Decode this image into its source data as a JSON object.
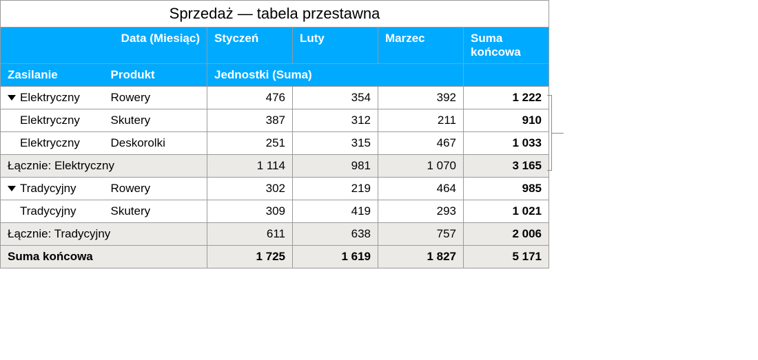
{
  "title": "Sprzedaż — tabela przestawna",
  "headers": {
    "date_label": "Data (Miesiąc)",
    "months": [
      "Styczeń",
      "Luty",
      "Marzec"
    ],
    "grand": "Suma końcowa",
    "row_field_1": "Zasilanie",
    "row_field_2": "Produkt",
    "values_label": "Jednostki (Suma)"
  },
  "groups": [
    {
      "name": "Elektryczny",
      "rows": [
        {
          "product": "Rowery",
          "vals": [
            "476",
            "354",
            "392"
          ],
          "total": "1 222"
        },
        {
          "product": "Skutery",
          "vals": [
            "387",
            "312",
            "211"
          ],
          "total": "910"
        },
        {
          "product": "Deskorolki",
          "vals": [
            "251",
            "315",
            "467"
          ],
          "total": "1 033"
        }
      ],
      "subtotal_label": "Łącznie: Elektryczny",
      "subtotal": {
        "vals": [
          "1 114",
          "981",
          "1 070"
        ],
        "total": "3 165"
      }
    },
    {
      "name": "Tradycyjny",
      "rows": [
        {
          "product": "Rowery",
          "vals": [
            "302",
            "219",
            "464"
          ],
          "total": "985"
        },
        {
          "product": "Skutery",
          "vals": [
            "309",
            "419",
            "293"
          ],
          "total": "1 021"
        }
      ],
      "subtotal_label": "Łącznie: Tradycyjny",
      "subtotal": {
        "vals": [
          "611",
          "638",
          "757"
        ],
        "total": "2 006"
      }
    }
  ],
  "grand_total": {
    "label": "Suma końcowa",
    "vals": [
      "1 725",
      "1 619",
      "1 827"
    ],
    "total": "5 171"
  },
  "style": {
    "header_bg": "#00aaff",
    "header_fg": "#ffffff",
    "subtotal_bg": "#eceae6",
    "border": "#9a9a9a"
  }
}
